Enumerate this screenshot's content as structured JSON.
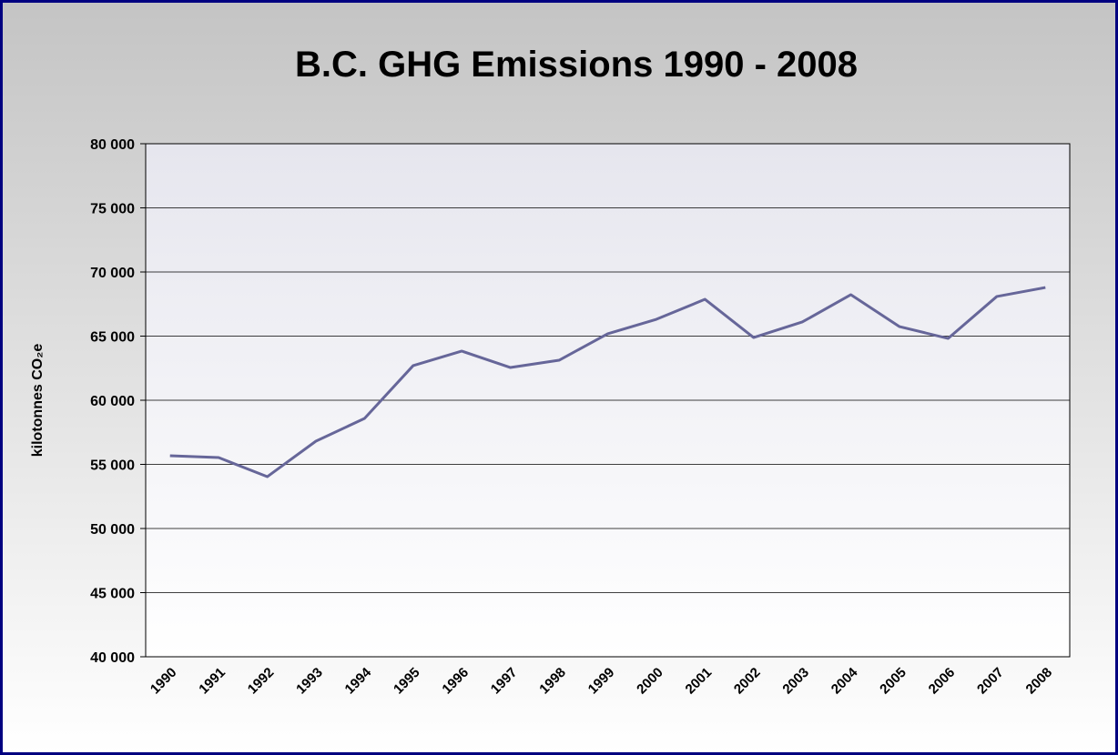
{
  "chart_data": {
    "type": "line",
    "title": "B.C. GHG Emissions 1990 - 2008",
    "y_label": "kilotonnes CO₂e",
    "categories": [
      "1990",
      "1991",
      "1992",
      "1993",
      "1994",
      "1995",
      "1996",
      "1997",
      "1998",
      "1999",
      "2000",
      "2001",
      "2002",
      "2003",
      "2004",
      "2005",
      "2006",
      "2007",
      "2008"
    ],
    "series": [
      {
        "name": "B.C. GHG Emissions",
        "color": "#666699",
        "values": [
          55670,
          55530,
          54040,
          56810,
          58580,
          62700,
          63830,
          62550,
          63120,
          65180,
          66310,
          67870,
          64890,
          66100,
          68230,
          65740,
          64820,
          68090,
          68790
        ]
      }
    ],
    "ylim": [
      40000,
      80000
    ],
    "yticks": [
      {
        "value": 40000,
        "label": "40 000"
      },
      {
        "value": 45000,
        "label": "45 000"
      },
      {
        "value": 50000,
        "label": "50 000"
      },
      {
        "value": 55000,
        "label": "55 000"
      },
      {
        "value": 60000,
        "label": "60 000"
      },
      {
        "value": 65000,
        "label": "65 000"
      },
      {
        "value": 70000,
        "label": "70 000"
      },
      {
        "value": 75000,
        "label": "75 000"
      },
      {
        "value": 80000,
        "label": "80 000"
      }
    ],
    "grid": true
  }
}
